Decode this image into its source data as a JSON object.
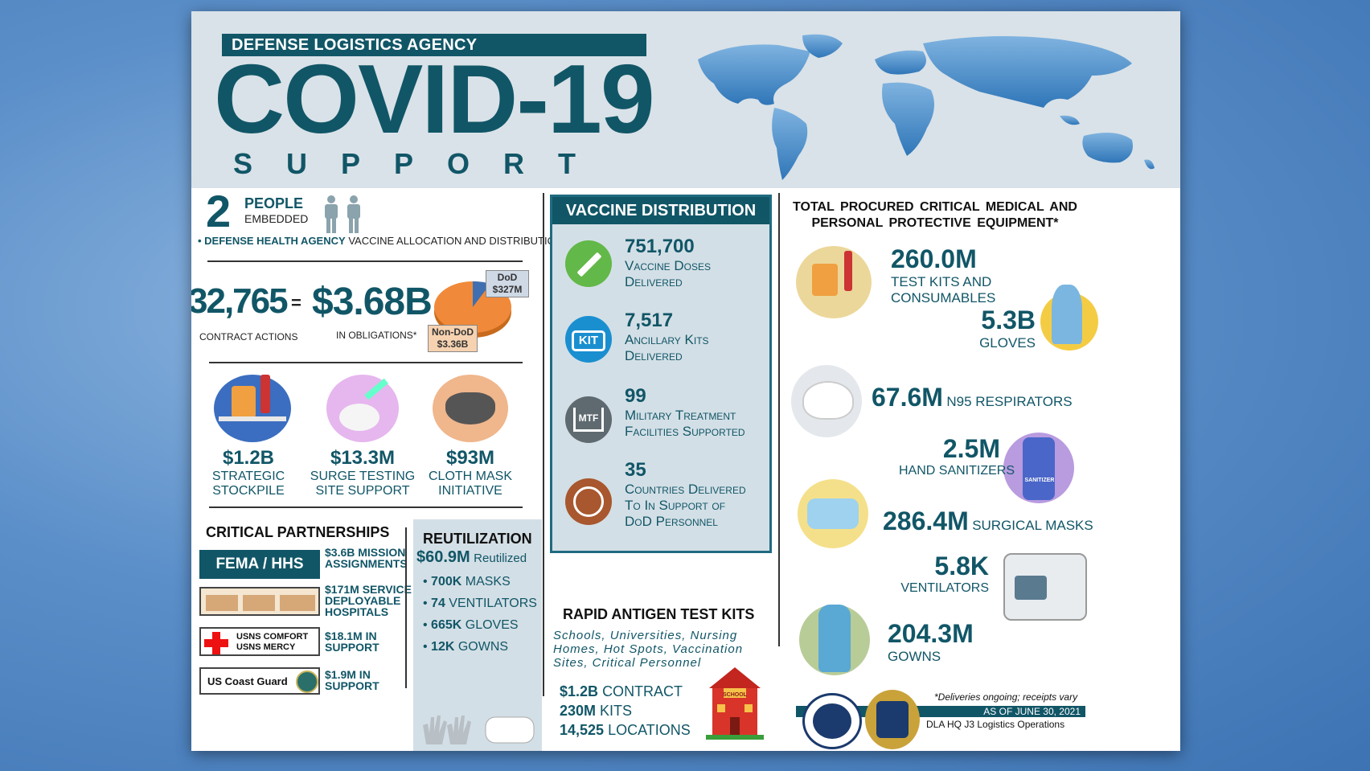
{
  "header": {
    "agency": "DEFENSE LOGISTICS AGENCY",
    "title": "COVID-19",
    "subtitle": "SUPPORT"
  },
  "people": {
    "count": "2",
    "label1": "PEOPLE",
    "label2": "EMBEDDED",
    "agency": "• DEFENSE HEALTH AGENCY",
    "desc": "VACCINE ALLOCATION AND DISTRIBUTION"
  },
  "contracts": {
    "actions": "32,765",
    "equals": "=",
    "obligations": "$3.68B",
    "actions_label": "CONTRACT ACTIONS",
    "obligations_label": "IN OBLIGATIONS*",
    "pie_dod_label": "DoD",
    "pie_dod_value": "$327M",
    "pie_nondod_label": "Non-DoD",
    "pie_nondod_value": "$3.36B"
  },
  "spending": [
    {
      "value": "$1.2B",
      "line1": "STRATEGIC",
      "line2": "STOCKPILE"
    },
    {
      "value": "$13.3M",
      "line1": "SURGE TESTING",
      "line2": "SITE SUPPORT"
    },
    {
      "value": "$93M",
      "line1": "CLOTH MASK",
      "line2": "INITIATIVE"
    }
  ],
  "partnerships": {
    "title": "CRITICAL PARTNERSHIPS",
    "fema": "FEMA / HHS",
    "fema_desc1": "$3.6B MISSION",
    "fema_desc2": "ASSIGNMENTS",
    "hosp_desc1": "$171M SERVICE",
    "hosp_desc2": "DEPLOYABLE",
    "hosp_desc3": "HOSPITALS",
    "usns1": "USNS COMFORT",
    "usns2": "USNS MERCY",
    "usns_desc1": "$18.1M IN",
    "usns_desc2": "SUPPORT",
    "uscg": "US Coast Guard",
    "uscg_desc1": "$1.9M IN",
    "uscg_desc2": "SUPPORT"
  },
  "reutilization": {
    "title": "REUTILIZATION",
    "total": "$60.9M",
    "total_label": "Reutilized",
    "items": [
      {
        "num": "700K",
        "label": "MASKS"
      },
      {
        "num": "74",
        "label": "VENTILATORS"
      },
      {
        "num": "665K",
        "label": "GLOVES"
      },
      {
        "num": "12K",
        "label": "GOWNS"
      }
    ]
  },
  "vaccine": {
    "title": "VACCINE DISTRIBUTION",
    "items": [
      {
        "num": "751,700",
        "line1": "Vaccine Doses",
        "line2": "Delivered",
        "line3": ""
      },
      {
        "num": "7,517",
        "line1": "Ancillary Kits",
        "line2": "Delivered",
        "line3": ""
      },
      {
        "num": "99",
        "line1": "Military Treatment",
        "line2": "Facilities Supported",
        "line3": ""
      },
      {
        "num": "35",
        "line1": "Countries Delivered",
        "line2": "To In Support of",
        "line3": "DoD Personnel"
      }
    ],
    "kit_icon_text": "KIT",
    "mtf_icon_text": "MTF"
  },
  "antigen": {
    "title": "RAPID ANTIGEN TEST KITS",
    "desc1": "Schools, Universities, Nursing",
    "desc2": "Homes, Hot Spots, Vaccination",
    "desc3": "Sites, Critical Personnel",
    "contract_num": "$1.2B",
    "contract_label": "CONTRACT",
    "kits_num": "230M",
    "kits_label": "KITS",
    "loc_num": "14,525",
    "loc_label": "LOCATIONS",
    "school_sign": "SCHOOL"
  },
  "ppe": {
    "title1": "TOTAL PROCURED CRITICAL MEDICAL AND",
    "title2": "PERSONAL PROTECTIVE EQUIPMENT*",
    "test_kits_num": "260.0M",
    "test_kits_l1": "TEST KITS AND",
    "test_kits_l2": "CONSUMABLES",
    "gloves_num": "5.3B",
    "gloves_label": "GLOVES",
    "n95_num": "67.6M",
    "n95_label": "N95 RESPIRATORS",
    "sanitizer_num": "2.5M",
    "sanitizer_label": "HAND SANITIZERS",
    "sanitizer_bottle": "SANITIZER",
    "masks_num": "286.4M",
    "masks_label": "SURGICAL MASKS",
    "vent_num": "5.8K",
    "vent_label": "VENTILATORS",
    "gowns_num": "204.3M",
    "gowns_label": "GOWNS"
  },
  "footer": {
    "note": "*Deliveries ongoing; receipts vary",
    "as_of": "AS OF JUNE 30, 2021",
    "org": "DLA HQ J3 Logistics Operations"
  }
}
